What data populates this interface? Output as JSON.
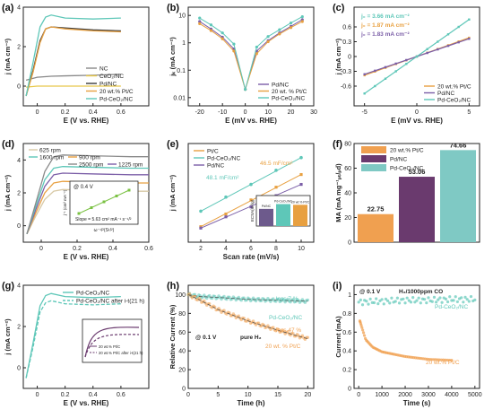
{
  "chart_data": [
    {
      "panel": "(a)",
      "type": "line",
      "xlabel": "E (V vs. RHE)",
      "ylabel": "j (mA cm⁻²)",
      "xlim": [
        -0.1,
        0.8
      ],
      "ylim": [
        -1,
        4
      ],
      "xticks": [
        0.0,
        0.2,
        0.4,
        0.6
      ],
      "yticks": [
        0,
        2,
        4
      ],
      "legend": "bottom-right",
      "series": [
        {
          "name": "NC",
          "color": "#888888",
          "x": [
            -0.08,
            0.0,
            0.1,
            0.2,
            0.4,
            0.6
          ],
          "y": [
            0.3,
            0.45,
            0.5,
            0.52,
            0.55,
            0.6
          ]
        },
        {
          "name": "CeO₂/NC",
          "color": "#e8c84a",
          "x": [
            -0.08,
            0.0,
            0.1,
            0.2,
            0.4,
            0.6
          ],
          "y": [
            -0.05,
            0.0,
            0.0,
            0.0,
            0.0,
            0.0
          ]
        },
        {
          "name": "Pd/NC",
          "color": "#3b3b3b",
          "x": [
            -0.08,
            -0.03,
            0.02,
            0.06,
            0.1,
            0.2,
            0.4,
            0.6
          ],
          "y": [
            -0.5,
            0.8,
            2.3,
            2.9,
            3.0,
            2.95,
            2.85,
            2.8
          ]
        },
        {
          "name": "20 wt.% Pt/C",
          "color": "#e8a040",
          "x": [
            -0.08,
            -0.03,
            0.02,
            0.06,
            0.1,
            0.2,
            0.4,
            0.6
          ],
          "y": [
            -0.5,
            0.7,
            2.2,
            2.9,
            3.0,
            2.9,
            2.8,
            2.75
          ]
        },
        {
          "name": "Pd-CeO₂/NC",
          "color": "#5ec7b8",
          "x": [
            -0.08,
            -0.03,
            0.02,
            0.06,
            0.1,
            0.2,
            0.4,
            0.6
          ],
          "y": [
            -0.5,
            1.2,
            3.0,
            3.5,
            3.6,
            3.45,
            3.4,
            3.45
          ]
        }
      ]
    },
    {
      "panel": "(b)",
      "type": "line",
      "xlabel": "E (mV vs. RHE)",
      "ylabel": "jₖ (mA cm⁻²)",
      "xlim": [
        -25,
        30
      ],
      "ylim_log": [
        0.005,
        20
      ],
      "yscale": "log",
      "xticks": [
        -20,
        -10,
        0,
        10,
        20,
        30
      ],
      "yticks": [
        0.01,
        0.1,
        1,
        10
      ],
      "legend": "bottom-right",
      "series": [
        {
          "name": "Pd/NC",
          "color": "#7b5ea7",
          "x": [
            -20,
            -15,
            -10,
            -5,
            0,
            5,
            10,
            15,
            20,
            25
          ],
          "y": [
            6,
            3.2,
            1.6,
            0.6,
            0.02,
            0.5,
            1.2,
            2.3,
            4.0,
            7.0
          ]
        },
        {
          "name": "20 wt. % Pt/C",
          "color": "#e8a040",
          "x": [
            -20,
            -15,
            -10,
            -5,
            0,
            5,
            10,
            15,
            20,
            25
          ],
          "y": [
            5,
            2.8,
            1.4,
            0.5,
            0.02,
            0.4,
            1.1,
            2.1,
            3.6,
            6.0
          ]
        },
        {
          "name": "Pd-CeO₂/NC",
          "color": "#5ec7b8",
          "x": [
            -20,
            -15,
            -10,
            -5,
            0,
            5,
            10,
            15,
            20,
            25
          ],
          "y": [
            8,
            4.5,
            2.3,
            0.9,
            0.02,
            0.7,
            1.7,
            3.0,
            5.3,
            9.0
          ]
        }
      ]
    },
    {
      "panel": "(c)",
      "type": "line",
      "xlabel": "E (mV vs. RHE)",
      "ylabel": "j (mA cm⁻²)",
      "xlim": [
        -6,
        6
      ],
      "ylim": [
        -1.0,
        1.0
      ],
      "xticks": [
        -5,
        0,
        5
      ],
      "yticks": [
        -0.6,
        -0.3,
        0.0,
        0.3,
        0.6
      ],
      "annotations": [
        "j₀ = 3.66 mA cm⁻²",
        "j₀ = 1.87 mA cm⁻²",
        "j₀ = 1.83 mA cm⁻²"
      ],
      "annotation_colors": [
        "#5ec7b8",
        "#e8a040",
        "#7b5ea7"
      ],
      "legend": "bottom-right",
      "series": [
        {
          "name": "20 wt.% Pt/C",
          "color": "#e8a040",
          "x": [
            -5,
            5
          ],
          "y": [
            -0.38,
            0.38
          ]
        },
        {
          "name": "Pd/NC",
          "color": "#7b5ea7",
          "x": [
            -5,
            5
          ],
          "y": [
            -0.36,
            0.36
          ]
        },
        {
          "name": "Pd-CeO₂/NC",
          "color": "#5ec7b8",
          "x": [
            -5,
            5
          ],
          "y": [
            -0.75,
            0.75
          ]
        }
      ]
    },
    {
      "panel": "(d)",
      "type": "line",
      "xlabel": "E (V vs. RHE)",
      "ylabel": "j (mA cm⁻²)",
      "xlim": [
        -0.1,
        0.6
      ],
      "ylim": [
        -1,
        5
      ],
      "xticks": [
        0.0,
        0.2,
        0.4,
        0.6
      ],
      "yticks": [
        0,
        2,
        4
      ],
      "legend": "top",
      "series": [
        {
          "name": "625 rpm",
          "color": "#d8c9a6",
          "x": [
            -0.08,
            -0.03,
            0.02,
            0.07,
            0.12,
            0.3,
            0.5,
            0.6
          ],
          "y": [
            -0.5,
            0.6,
            1.6,
            2.1,
            2.2,
            2.15,
            2.1,
            2.1
          ]
        },
        {
          "name": "900 rpm",
          "color": "#e8a040",
          "x": [
            -0.08,
            -0.03,
            0.02,
            0.07,
            0.12,
            0.3,
            0.5,
            0.6
          ],
          "y": [
            -0.5,
            0.8,
            2.0,
            2.6,
            2.7,
            2.65,
            2.6,
            2.6
          ]
        },
        {
          "name": "1225 rpm",
          "color": "#7b5ea7",
          "x": [
            -0.08,
            -0.03,
            0.02,
            0.07,
            0.12,
            0.3,
            0.5,
            0.6
          ],
          "y": [
            -0.5,
            1.0,
            2.4,
            3.1,
            3.2,
            3.15,
            3.1,
            3.1
          ]
        },
        {
          "name": "1600 rpm",
          "color": "#5ec7b8",
          "x": [
            -0.08,
            -0.03,
            0.02,
            0.07,
            0.12,
            0.3,
            0.5,
            0.6
          ],
          "y": [
            -0.5,
            1.2,
            2.8,
            3.5,
            3.6,
            3.55,
            3.5,
            3.5
          ]
        },
        {
          "name": "2500 rpm",
          "color": "#8a8a8a",
          "x": [
            -0.08,
            -0.03,
            0.02,
            0.07,
            0.12,
            0.3,
            0.5,
            0.6
          ],
          "y": [
            -0.5,
            1.4,
            3.3,
            4.2,
            4.3,
            4.25,
            4.2,
            4.2
          ]
        }
      ],
      "inset": {
        "title": "@ 0.4 V",
        "xlabel": "ω⁻¹/²(S¹/²)",
        "ylabel": "j⁻¹ (cm² mA⁻¹)",
        "annotation": "Slope = 5.63 cm² mA⁻¹ s⁻¹/²",
        "x": [
          0.02,
          0.025,
          0.03,
          0.035,
          0.04
        ],
        "y": [
          0.3,
          0.33,
          0.36,
          0.39,
          0.42
        ]
      }
    },
    {
      "panel": "(e)",
      "type": "line",
      "xlabel": "Scan rate (mV/s)",
      "ylabel": "j (mA cm⁻²)",
      "xlim": [
        1,
        11
      ],
      "ylim": [
        0,
        0.7
      ],
      "xticks": [
        2,
        4,
        6,
        8,
        10
      ],
      "legend": "top-left",
      "annotations": [
        "48.1 mF/cm²",
        "46.5 mF/cm²",
        "37.6 mF/cm²"
      ],
      "series": [
        {
          "name": "Pt/C",
          "color": "#e8a040",
          "x": [
            2,
            4,
            6,
            8,
            10
          ],
          "y": [
            0.11,
            0.2,
            0.3,
            0.39,
            0.48
          ]
        },
        {
          "name": "Pd-CeO₂/NC",
          "color": "#5ec7b8",
          "x": [
            2,
            4,
            6,
            8,
            10
          ],
          "y": [
            0.22,
            0.32,
            0.41,
            0.51,
            0.6
          ]
        },
        {
          "name": "Pd/NC",
          "color": "#7b5ea7",
          "x": [
            2,
            4,
            6,
            8,
            10
          ],
          "y": [
            0.1,
            0.18,
            0.25,
            0.33,
            0.41
          ]
        }
      ],
      "inset": {
        "type": "bar",
        "ylabel": "ECSA(m²/g)",
        "categories": [
          "Pd/NC",
          "Pd-CeO₂/NC",
          "20 wt.% Pt/C"
        ],
        "values": [
          37.6,
          48.1,
          46.5
        ],
        "colors": [
          "#6d5a8c",
          "#5ec7b8",
          "#e8a040"
        ]
      }
    },
    {
      "panel": "(f)",
      "type": "bar",
      "ylabel": "MA (mA mg⁻¹ₚₜ/ₚd)",
      "ylim": [
        0,
        80
      ],
      "yticks": [
        0,
        20,
        40,
        60,
        80
      ],
      "legend": "top-left",
      "categories": [
        "20 wt.% Pt/C",
        "Pd/NC",
        "Pd-CeO₂/NC"
      ],
      "values": [
        22.75,
        53.06,
        74.66
      ],
      "value_labels": [
        "22.75",
        "53.06",
        "74.66"
      ],
      "colors": [
        "#f0a050",
        "#6a3a6e",
        "#7fc9c4"
      ]
    },
    {
      "panel": "(g)",
      "type": "line",
      "xlabel": "E (V vs. RHE)",
      "ylabel": "j (mA cm⁻²)",
      "xlim": [
        -0.1,
        0.8
      ],
      "ylim": [
        -1,
        4
      ],
      "xticks": [
        0.0,
        0.2,
        0.4,
        0.6
      ],
      "yticks": [
        0,
        2,
        4
      ],
      "legend": "top-right",
      "series": [
        {
          "name": "Pd-CeO₂/NC",
          "color": "#5ec7b8",
          "dash": false,
          "x": [
            -0.08,
            -0.03,
            0.02,
            0.06,
            0.1,
            0.2,
            0.4,
            0.6
          ],
          "y": [
            -0.5,
            1.2,
            3.0,
            3.5,
            3.6,
            3.45,
            3.4,
            3.45
          ]
        },
        {
          "name": "Pd-CeO₂/NC after i-t(21 h)",
          "color": "#5ec7b8",
          "dash": true,
          "x": [
            -0.08,
            -0.03,
            0.02,
            0.06,
            0.1,
            0.2,
            0.4,
            0.6
          ],
          "y": [
            -0.5,
            1.0,
            2.7,
            3.15,
            3.25,
            3.1,
            3.05,
            3.1
          ]
        }
      ],
      "inset": {
        "series": [
          {
            "name": "20 wt.% Pt/C",
            "dash": false
          },
          {
            "name": "20 wt.% Pt/C after i-t(21 h)",
            "dash": true
          }
        ]
      }
    },
    {
      "panel": "(h)",
      "type": "scatter",
      "xlabel": "Time (h)",
      "ylabel": "Relative Current (%)",
      "xlim": [
        0,
        21
      ],
      "ylim": [
        0,
        110
      ],
      "xticks": [
        0,
        5,
        10,
        15,
        20
      ],
      "yticks": [
        0,
        20,
        40,
        60,
        80,
        100
      ],
      "annotations": [
        "loss 7 %",
        "loss 47 %",
        "@ 0.1 V",
        "pure H₂"
      ],
      "series": [
        {
          "name": "Pd-CeO₂/NC",
          "color": "#5ec7b8",
          "x": [
            0,
            2,
            5,
            10,
            15,
            20
          ],
          "y": [
            100,
            98,
            97,
            95,
            94,
            93
          ]
        },
        {
          "name": "20 wt. % Pt/C",
          "color": "#f0a050",
          "x": [
            0,
            2,
            5,
            10,
            15,
            20
          ],
          "y": [
            100,
            94,
            84,
            72,
            62,
            53
          ]
        }
      ]
    },
    {
      "panel": "(i)",
      "type": "scatter",
      "xlabel": "Time (s)",
      "ylabel": "Current (mA)",
      "xlim": [
        -200,
        5200
      ],
      "ylim": [
        0,
        1.1
      ],
      "xticks": [
        0,
        1000,
        2000,
        3000,
        4000,
        5000
      ],
      "yticks": [
        0.0,
        0.2,
        0.4,
        0.6,
        0.8,
        1.0
      ],
      "annotations": [
        "@ 0.1 V",
        "H₂/1000ppm CO"
      ],
      "series": [
        {
          "name": "Pd-CeO₂/NC",
          "color": "#5ec7b8",
          "x": [
            0,
            1000,
            2000,
            3000,
            4000,
            5000
          ],
          "y": [
            0.92,
            0.93,
            0.94,
            0.94,
            0.95,
            0.95
          ]
        },
        {
          "name": "20 wt.% Pt/C",
          "color": "#f0a050",
          "x": [
            50,
            300,
            600,
            1000,
            2000,
            3000,
            4000
          ],
          "y": [
            0.72,
            0.52,
            0.44,
            0.39,
            0.34,
            0.31,
            0.3
          ]
        }
      ]
    }
  ]
}
